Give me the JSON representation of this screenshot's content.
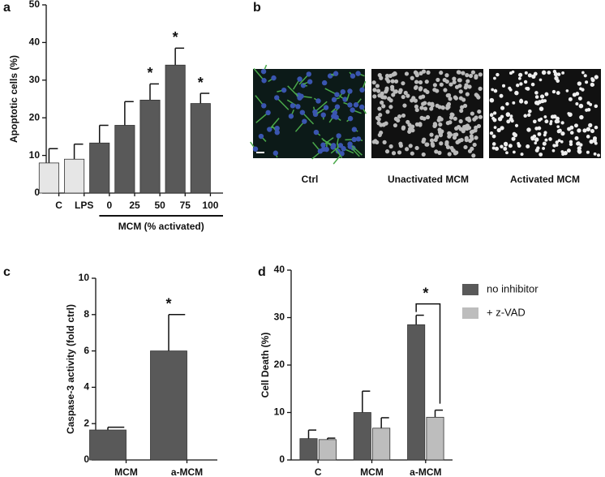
{
  "panels": [
    "a",
    "b",
    "c",
    "d"
  ],
  "chart_data": [
    {
      "type": "bar",
      "ylabel": "Apoptotic cells (%)",
      "categories": [
        "C",
        "LPS",
        "0",
        "25",
        "50",
        "75",
        "100"
      ],
      "values": [
        8,
        9,
        13.3,
        18,
        24.7,
        34,
        23.8
      ],
      "errors": [
        3.8,
        4,
        4.7,
        6.3,
        4.3,
        4.5,
        2.7
      ],
      "colors": [
        "#e6e6e6",
        "#e6e6e6",
        "#595959",
        "#595959",
        "#595959",
        "#595959",
        "#595959"
      ],
      "significance": [
        null,
        null,
        null,
        null,
        "*",
        "*",
        "*"
      ],
      "group_label": "MCM (% activated)",
      "ylim": [
        0,
        50
      ],
      "yticks": [
        0,
        10,
        20,
        30,
        40,
        50
      ]
    },
    {
      "type": "bar",
      "ylabel": "Caspase-3 activity (fold ctrl)",
      "categories": [
        "MCM",
        "a-MCM"
      ],
      "values": [
        1.65,
        6
      ],
      "errors": [
        0.15,
        2
      ],
      "color": "#595959",
      "significance": [
        null,
        "*"
      ],
      "ylim": [
        0,
        10
      ],
      "yticks": [
        0,
        2,
        4,
        6,
        8,
        10
      ]
    },
    {
      "type": "grouped_bar",
      "ylabel": "Cell Death (%)",
      "categories": [
        "C",
        "MCM",
        "a-MCM"
      ],
      "series": [
        {
          "name": "no inhibitor",
          "color": "#595959",
          "values": [
            4.5,
            10,
            28.5
          ],
          "errors": [
            1.8,
            4.5,
            2
          ]
        },
        {
          "name": "+ z-VAD",
          "color": "#bdbdbd",
          "values": [
            4.3,
            6.7,
            9
          ],
          "errors": [
            0.3,
            2.2,
            1.5
          ]
        }
      ],
      "annotation": "*",
      "legend": "right",
      "ylim": [
        0,
        40
      ],
      "yticks": [
        0,
        10,
        20,
        30,
        40
      ]
    }
  ],
  "images": [
    "Ctrl",
    "Unactivated MCM",
    "Activated MCM"
  ]
}
